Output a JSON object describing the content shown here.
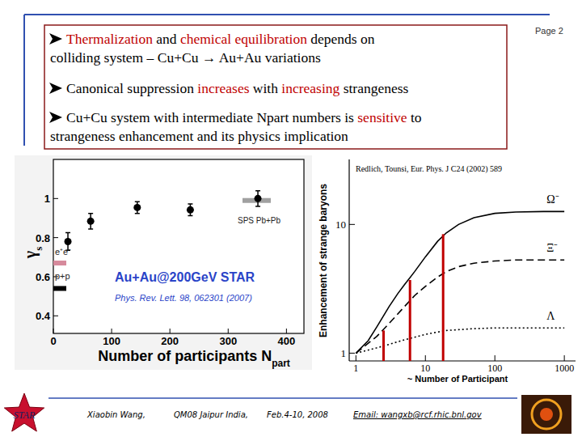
{
  "page": {
    "label": "Page 2"
  },
  "highlight_color": "#c00000",
  "bullets": [
    {
      "lines": [
        [
          {
            "text": "Thermalization",
            "highlight": true
          },
          {
            "text": " and "
          },
          {
            "text": "chemical equilibration",
            "highlight": true
          },
          {
            "text": " depends on"
          }
        ],
        [
          {
            "text": "colliding system – Cu+Cu → Au+Au variations"
          }
        ]
      ]
    },
    {
      "lines": [
        [
          {
            "text": "Canonical suppression "
          },
          {
            "text": "increases",
            "highlight": true
          },
          {
            "text": " with "
          },
          {
            "text": "increasing",
            "highlight": true
          },
          {
            "text": " strangeness"
          }
        ]
      ]
    },
    {
      "lines": [
        [
          {
            "text": "Cu+Cu system with intermediate Npart numbers is "
          },
          {
            "text": "sensitive",
            "highlight": true
          },
          {
            "text": " to"
          }
        ],
        [
          {
            "text": "strangeness enhancement and its physics implication"
          }
        ]
      ]
    }
  ],
  "chart_data": [
    {
      "type": "scatter",
      "ylabel": "γs",
      "xlabel": "Number of participants Npart",
      "annotations": [
        "Au+Au@200GeV STAR",
        "Phys. Rev. Lett. 98, 062301 (2007)"
      ],
      "xlim": [
        0,
        430
      ],
      "xticks": [
        0,
        100,
        200,
        300,
        400
      ],
      "ylim": [
        0.31,
        1.2
      ],
      "yticks": [
        0.4,
        0.6,
        0.8,
        1
      ],
      "series": [
        {
          "x": [
            25,
            64,
            144,
            235,
            351
          ],
          "values": [
            0.78,
            0.884,
            0.954,
            0.942,
            1.0
          ],
          "errors": [
            0.045,
            0.04,
            0.03,
            0.03,
            0.04
          ],
          "color": "#000000",
          "marker": "circle"
        }
      ],
      "references": [
        {
          "name": "e⁺e⁻",
          "value": 0.67,
          "color": "#d68a9c"
        },
        {
          "name": "p+p",
          "value": 0.54,
          "color": "#000000"
        },
        {
          "name": "SPS Pb+Pb",
          "value": 0.99,
          "color": "#a0a0a0"
        }
      ]
    },
    {
      "type": "line",
      "title": "Redlich, Tounsi, Eur. Phys. J C24 (2002) 589",
      "xlabel": "~ Number of Participant",
      "ylabel": "Enhancement of strange baryons",
      "log": true,
      "xlim": [
        0.8,
        1450
      ],
      "xticks": [
        1,
        10,
        100,
        1000
      ],
      "ylim": [
        0.87,
        32
      ],
      "yticks": [
        1,
        10
      ],
      "series": [
        {
          "name": "Ω⁻",
          "color": "#000000",
          "line_style": "solid",
          "x": [
            1,
            1.5,
            2,
            3,
            4,
            5,
            7,
            10,
            15,
            20,
            30,
            50,
            100,
            200,
            500,
            1000
          ],
          "values": [
            1.0,
            1.25,
            1.6,
            2.3,
            2.9,
            3.4,
            4.3,
            5.6,
            7.4,
            8.6,
            10.0,
            11.3,
            12.2,
            12.5,
            12.6,
            12.6
          ]
        },
        {
          "name": "Ξ⁻",
          "color": "#000000",
          "line_style": "dashed",
          "x": [
            1,
            2,
            3,
            5,
            7,
            10,
            15,
            20,
            30,
            50,
            100,
            200,
            1000
          ],
          "values": [
            1.0,
            1.35,
            1.7,
            2.3,
            2.8,
            3.3,
            3.9,
            4.3,
            4.7,
            5.0,
            5.2,
            5.3,
            5.3
          ]
        },
        {
          "name": "Λ",
          "color": "#000000",
          "line_style": "dotted",
          "x": [
            1,
            2,
            3,
            5,
            10,
            20,
            50,
            100,
            1000
          ],
          "values": [
            1.0,
            1.1,
            1.17,
            1.27,
            1.4,
            1.5,
            1.55,
            1.57,
            1.57
          ]
        }
      ],
      "vlines": {
        "x": [
          2.5,
          6,
          18
        ],
        "values": [
          1.5,
          3.7,
          8.4
        ],
        "color": "#c00000"
      }
    }
  ],
  "footer": {
    "logo": "STAR",
    "author": "Xiaobin Wang,",
    "conference": "QM08 Jaipur India,",
    "date": "Feb.4-10, 2008",
    "email": "Email: wangxb@rcf.rhic.bnl.gov"
  }
}
